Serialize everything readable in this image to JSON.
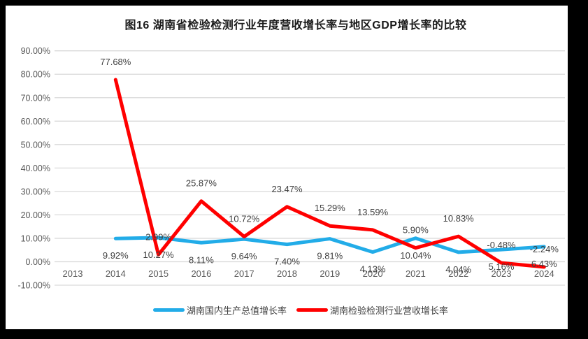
{
  "chart_data": {
    "type": "line",
    "title": "图16  湖南省检验检测行业年度营收增长率与地区GDP增长率的比较",
    "categories": [
      "2013",
      "2014",
      "2015",
      "2016",
      "2017",
      "2018",
      "2019",
      "2020",
      "2021",
      "2022",
      "2023",
      "2024"
    ],
    "series": [
      {
        "key": "gdp",
        "name": "湖南国内生产总值增长率",
        "color": "#22ACE8",
        "values": [
          null,
          9.92,
          10.27,
          8.11,
          9.64,
          7.4,
          9.81,
          4.13,
          10.04,
          4.04,
          5.16,
          6.43
        ],
        "label_position": "below"
      },
      {
        "key": "inspection",
        "name": "湖南检验检测行业营收增长率",
        "color": "#FF0000",
        "values": [
          null,
          77.68,
          2.99,
          25.87,
          10.72,
          23.47,
          15.29,
          13.59,
          5.9,
          10.83,
          -0.48,
          -2.24
        ],
        "label_position": "above"
      }
    ],
    "y_axis": {
      "min": -10,
      "max": 90,
      "step": 10,
      "unit": "%",
      "decimals": 2
    },
    "grid": true,
    "data_labels": true,
    "legend_position": "bottom"
  },
  "style": {
    "page_background": "#000000",
    "panel_background": "#ffffff",
    "gridline_color": "#D9D9D9",
    "axis_text_color": "#595959",
    "data_label_color": "#3F3F3F",
    "title_color": "#1A1A1A",
    "legend_text_color": "#404040"
  }
}
